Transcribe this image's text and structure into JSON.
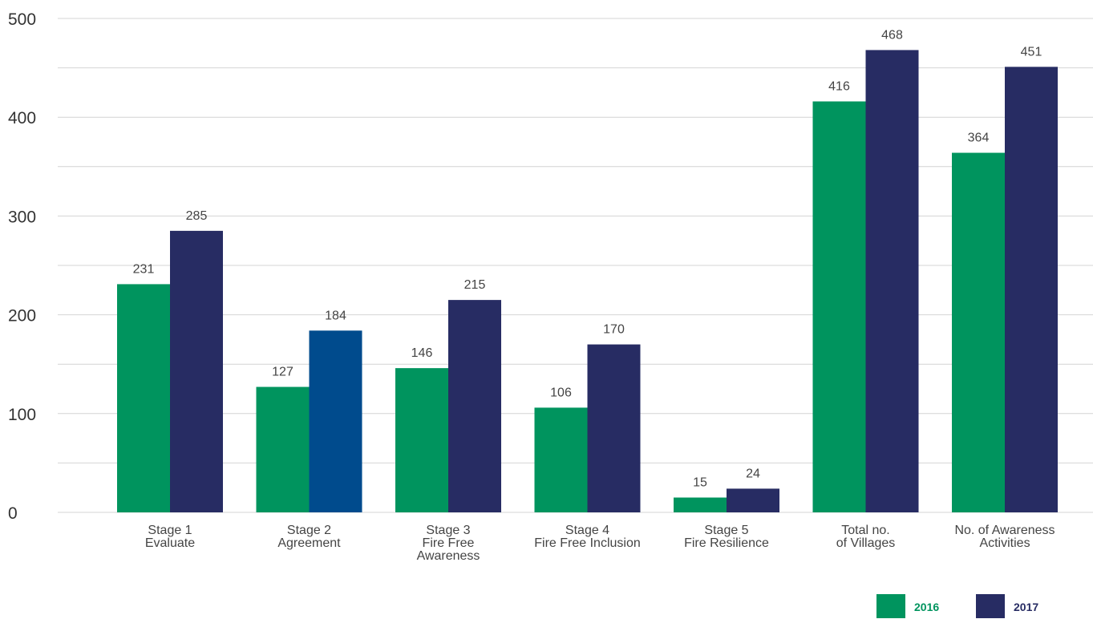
{
  "chart_data": {
    "type": "bar",
    "title": "",
    "xlabel": "",
    "ylabel": "",
    "ylim": [
      0,
      500
    ],
    "yticks": [
      0,
      100,
      200,
      300,
      400,
      500
    ],
    "grid": true,
    "legend_position": "bottom-right",
    "categories": [
      [
        "Stage 1",
        "Evaluate"
      ],
      [
        "Stage 2",
        "Agreement"
      ],
      [
        "Stage 3",
        "Fire Free",
        "Awareness"
      ],
      [
        "Stage 4",
        "Fire Free Inclusion"
      ],
      [
        "Stage 5",
        "Fire Resilience"
      ],
      [
        "Total no.",
        "of Villages"
      ],
      [
        "No. of Awareness",
        "Activities"
      ]
    ],
    "series": [
      {
        "name": "2016",
        "color": "#00945e",
        "values": [
          231,
          127,
          146,
          106,
          15,
          416,
          364
        ]
      },
      {
        "name": "2017",
        "color": "#272c63",
        "highlight": {
          "index": 1,
          "color": "#004b8d"
        },
        "values": [
          285,
          184,
          215,
          170,
          24,
          468,
          451
        ]
      }
    ]
  }
}
